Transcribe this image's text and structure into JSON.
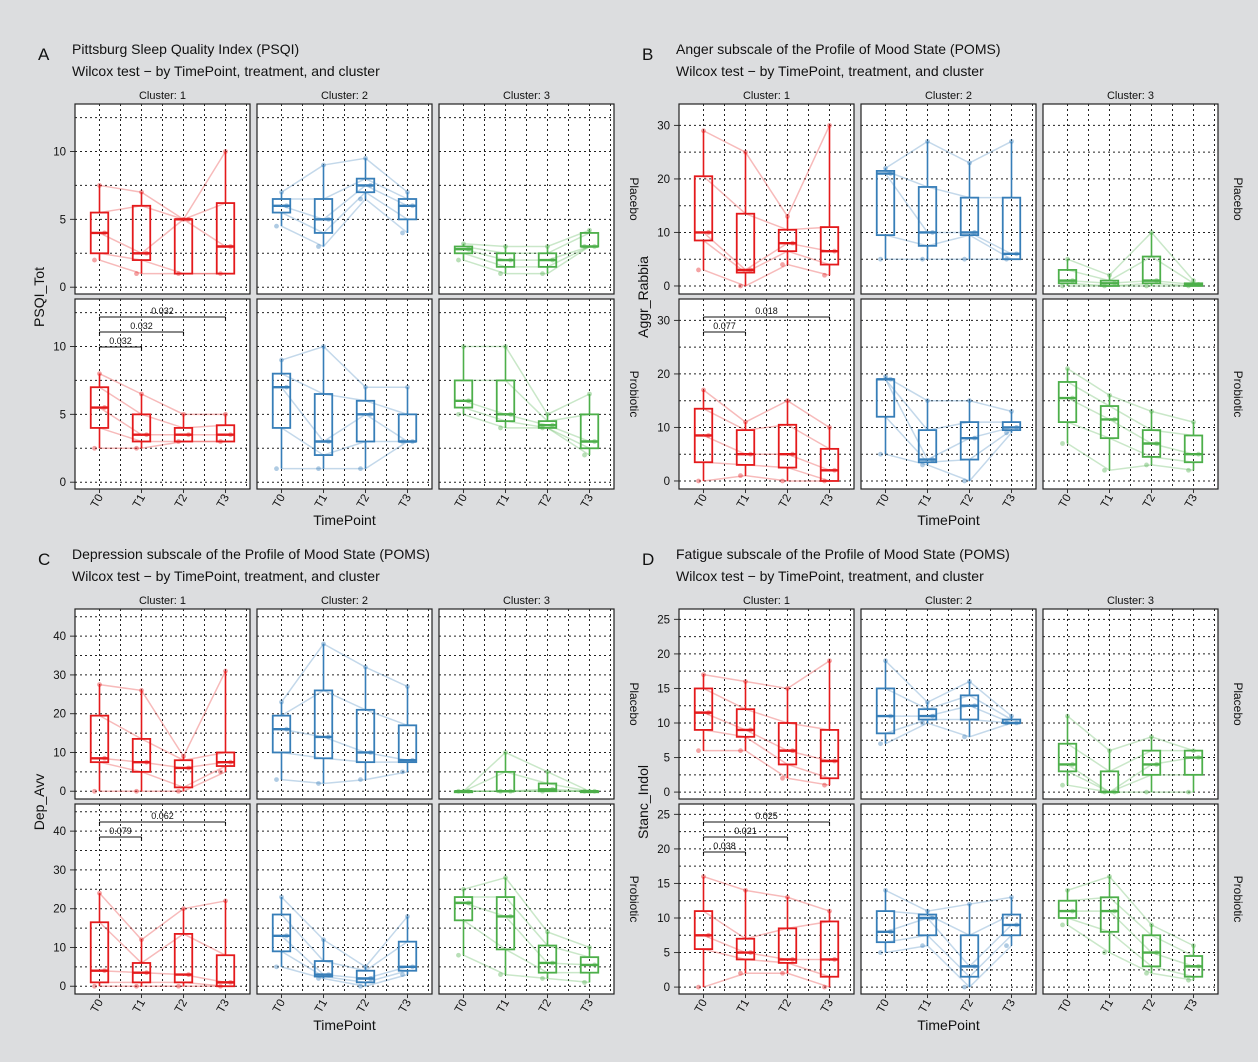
{
  "figure": {
    "background": "#dcdddf",
    "panel_background": "#ffffff",
    "colors": {
      "cluster_1": "#e41a1c",
      "cluster_2": "#377eb8",
      "cluster_3": "#4daf4a"
    },
    "strips": {
      "clusters": [
        "Cluster: 1",
        "Cluster: 2",
        "Cluster: 3"
      ],
      "rows": [
        "Placebo",
        "Probiotic"
      ]
    },
    "xlabel": "TimePoint",
    "timepoints": [
      "T0",
      "T1",
      "T2",
      "T3"
    ]
  },
  "chart_data": [
    {
      "type": "box",
      "letter": "A",
      "title": "Pittsburg Sleep Quality Index (PSQI)",
      "subtitle": "Wilcox test − by TimePoint, treatment, and cluster",
      "ylabel": "PSQI_Tot",
      "xlabel": "TimePoint",
      "ylim": [
        -0.5,
        13.5
      ],
      "yticks": [
        0,
        5,
        10
      ],
      "facets": {
        "Placebo": {
          "Cluster: 1": [
            [
              2,
              2.5,
              4,
              5.5,
              7.5
            ],
            [
              1,
              2,
              2.5,
              6,
              7
            ],
            [
              1,
              1,
              5,
              5,
              5
            ],
            [
              1,
              1,
              3,
              6.2,
              10
            ]
          ],
          "Cluster: 2": [
            [
              4.5,
              5.5,
              6,
              6.5,
              7
            ],
            [
              3,
              4,
              5,
              6.5,
              9
            ],
            [
              6.5,
              7,
              7.5,
              8,
              9.5
            ],
            [
              4,
              5,
              6,
              6.5,
              7
            ]
          ],
          "Cluster: 3": [
            [
              2,
              2.5,
              2.8,
              3,
              3.2
            ],
            [
              1,
              1.5,
              2,
              2.5,
              3
            ],
            [
              1,
              1.5,
              2,
              2.5,
              3
            ],
            [
              3,
              3,
              3,
              4,
              4.2
            ]
          ]
        },
        "Probiotic": {
          "Cluster: 1": [
            [
              2.5,
              4,
              5.5,
              7,
              8
            ],
            [
              2.5,
              3,
              3.5,
              5,
              6.5
            ],
            [
              3,
              3,
              3.5,
              4,
              5
            ],
            [
              3,
              3,
              3.5,
              4.2,
              5
            ]
          ],
          "Cluster: 2": [
            [
              1,
              4,
              7,
              8,
              9
            ],
            [
              1,
              2,
              3,
              6.5,
              10
            ],
            [
              1,
              3,
              5,
              6,
              7
            ],
            [
              3,
              3,
              3,
              5,
              7
            ]
          ],
          "Cluster: 3": [
            [
              5,
              5.5,
              6,
              7.5,
              10
            ],
            [
              4,
              4.5,
              5,
              7.5,
              10
            ],
            [
              4,
              4,
              4.2,
              4.5,
              5
            ],
            [
              2,
              2.5,
              3,
              5,
              6.5
            ]
          ]
        }
      },
      "annotations": [
        {
          "row": "Probiotic",
          "cluster": "Cluster: 1",
          "from": "T0",
          "to": "T1",
          "label": "0.032"
        },
        {
          "row": "Probiotic",
          "cluster": "Cluster: 1",
          "from": "T0",
          "to": "T2",
          "label": "0.032"
        },
        {
          "row": "Probiotic",
          "cluster": "Cluster: 1",
          "from": "T0",
          "to": "T3",
          "label": "0.032"
        }
      ]
    },
    {
      "type": "box",
      "letter": "B",
      "title": "Anger subscale of the Profile of Mood State (POMS)",
      "subtitle": "Wilcox test − by TimePoint, treatment, and cluster",
      "ylabel": "Aggr_Rabbia",
      "xlabel": "TimePoint",
      "ylim": [
        -1.5,
        34
      ],
      "yticks": [
        0,
        10,
        20,
        30
      ],
      "facets": {
        "Placebo": {
          "Cluster: 1": [
            [
              3,
              8.5,
              10,
              20.5,
              29
            ],
            [
              0,
              2.5,
              3,
              13.5,
              25
            ],
            [
              4,
              6.5,
              8,
              10.5,
              13
            ],
            [
              2,
              4,
              6.5,
              11,
              30
            ]
          ],
          "Cluster: 2": [
            [
              5,
              9.5,
              21,
              21.5,
              22
            ],
            [
              5,
              7.5,
              10,
              18.5,
              27
            ],
            [
              5,
              9.5,
              10,
              16.5,
              23
            ],
            [
              5,
              5,
              6,
              16.5,
              27
            ]
          ],
          "Cluster: 3": [
            [
              0,
              0.5,
              1,
              3,
              5
            ],
            [
              0,
              0,
              0.5,
              1,
              2
            ],
            [
              0,
              0.5,
              1,
              5.5,
              10
            ],
            [
              0,
              0,
              0.3,
              0.5,
              1
            ]
          ]
        },
        "Probiotic": {
          "Cluster: 1": [
            [
              0,
              3.5,
              8.5,
              13.5,
              17
            ],
            [
              1,
              3,
              5,
              9.5,
              11
            ],
            [
              0,
              2.5,
              5,
              10.5,
              15
            ],
            [
              0,
              0,
              2,
              6,
              10
            ]
          ],
          "Cluster: 2": [
            [
              5,
              12,
              19,
              19,
              19.5
            ],
            [
              3,
              3.5,
              4,
              9.5,
              15
            ],
            [
              0,
              4,
              8,
              11,
              15
            ],
            [
              9,
              9.5,
              10,
              11,
              13
            ]
          ],
          "Cluster: 3": [
            [
              7,
              11,
              15.5,
              18.5,
              21
            ],
            [
              2,
              8,
              11.5,
              14,
              16
            ],
            [
              3,
              4.5,
              7,
              9.5,
              13
            ],
            [
              2,
              3.5,
              5,
              8.5,
              11
            ]
          ]
        }
      },
      "annotations": [
        {
          "row": "Probiotic",
          "cluster": "Cluster: 1",
          "from": "T0",
          "to": "T1",
          "label": "0.077"
        },
        {
          "row": "Probiotic",
          "cluster": "Cluster: 1",
          "from": "T0",
          "to": "T3",
          "label": "0.018"
        }
      ]
    },
    {
      "type": "box",
      "letter": "C",
      "title": "Depression subscale of the Profile of Mood State (POMS)",
      "subtitle": "Wilcox test − by TimePoint, treatment, and cluster",
      "ylabel": "Dep_Avv",
      "xlabel": "TimePoint",
      "ylim": [
        -2,
        47
      ],
      "yticks": [
        0,
        10,
        20,
        30,
        40
      ],
      "facets": {
        "Placebo": {
          "Cluster: 1": [
            [
              0,
              7.5,
              8.5,
              19.5,
              27.5
            ],
            [
              0,
              5,
              7.5,
              13.5,
              26
            ],
            [
              0,
              1,
              6,
              8,
              9
            ],
            [
              5,
              6.5,
              7.5,
              10,
              31
            ]
          ],
          "Cluster: 2": [
            [
              3,
              10,
              16,
              19.5,
              23
            ],
            [
              2,
              8.5,
              14,
              26,
              38
            ],
            [
              3,
              7.5,
              10,
              21,
              32
            ],
            [
              5,
              7.5,
              8,
              17,
              27
            ]
          ],
          "Cluster: 3": [
            [
              0,
              0,
              0,
              0,
              0
            ],
            [
              0,
              0,
              0,
              5,
              10
            ],
            [
              0,
              0,
              0.5,
              2,
              5
            ],
            [
              0,
              0,
              0,
              0,
              0
            ]
          ]
        },
        "Probiotic": {
          "Cluster: 1": [
            [
              0,
              1,
              4,
              16.5,
              24
            ],
            [
              0,
              1,
              3.5,
              6,
              12
            ],
            [
              0,
              1,
              3,
              13.5,
              20
            ],
            [
              0,
              0,
              1,
              8,
              22
            ]
          ],
          "Cluster: 2": [
            [
              5,
              9,
              13,
              18.5,
              23
            ],
            [
              2,
              2.5,
              3,
              6.5,
              12
            ],
            [
              0,
              1,
              2,
              4,
              5
            ],
            [
              3,
              4,
              5,
              11.5,
              18
            ]
          ],
          "Cluster: 3": [
            [
              8,
              17,
              21.5,
              23,
              25
            ],
            [
              3,
              9.5,
              18,
              23,
              28
            ],
            [
              2,
              3.5,
              6,
              10.5,
              14
            ],
            [
              1,
              3.5,
              5.5,
              7.5,
              10
            ]
          ]
        }
      },
      "annotations": [
        {
          "row": "Probiotic",
          "cluster": "Cluster: 1",
          "from": "T0",
          "to": "T1",
          "label": "0.079"
        },
        {
          "row": "Probiotic",
          "cluster": "Cluster: 1",
          "from": "T0",
          "to": "T3",
          "label": "0.062"
        }
      ]
    },
    {
      "type": "box",
      "letter": "D",
      "title": "Fatigue subscale of the Profile of Mood State (POMS)",
      "subtitle": "Wilcox test − by TimePoint, treatment, and cluster",
      "ylabel": "Stanc_Indol",
      "xlabel": "TimePoint",
      "ylim": [
        -1,
        26.5
      ],
      "yticks": [
        0,
        5,
        10,
        15,
        20,
        25
      ],
      "facets": {
        "Placebo": {
          "Cluster: 1": [
            [
              6,
              9,
              11.5,
              15,
              17
            ],
            [
              6,
              8,
              9,
              12,
              16
            ],
            [
              2,
              4,
              6,
              10,
              15
            ],
            [
              1,
              2,
              4.5,
              9,
              19
            ]
          ],
          "Cluster: 2": [
            [
              7,
              8.5,
              11,
              15,
              19
            ],
            [
              10,
              10.5,
              11,
              12,
              13
            ],
            [
              8,
              10.5,
              12.5,
              14,
              16
            ],
            [
              10,
              10,
              10,
              10.5,
              11
            ]
          ],
          "Cluster: 3": [
            [
              1,
              3,
              4,
              7,
              11
            ],
            [
              0,
              0,
              0,
              3,
              6
            ],
            [
              0,
              2.5,
              4,
              6,
              8
            ],
            [
              0,
              2.5,
              5,
              6,
              6
            ]
          ]
        },
        "Probiotic": {
          "Cluster: 1": [
            [
              0,
              5.5,
              7.5,
              11,
              16
            ],
            [
              2,
              4,
              5,
              7,
              14
            ],
            [
              2,
              3.5,
              4,
              8.5,
              13
            ],
            [
              0,
              1.5,
              4,
              9.5,
              11
            ]
          ],
          "Cluster: 2": [
            [
              5,
              6.5,
              8,
              11,
              14
            ],
            [
              6,
              7.5,
              10,
              10.5,
              11
            ],
            [
              0,
              1.5,
              3,
              7.5,
              12
            ],
            [
              6,
              7.5,
              9,
              10.5,
              13
            ]
          ],
          "Cluster: 3": [
            [
              9,
              10,
              11,
              12.5,
              14
            ],
            [
              5,
              8,
              11,
              13,
              16
            ],
            [
              2,
              3,
              5,
              7.5,
              9
            ],
            [
              1,
              1.5,
              3,
              4.5,
              6
            ]
          ]
        }
      },
      "annotations": [
        {
          "row": "Probiotic",
          "cluster": "Cluster: 1",
          "from": "T0",
          "to": "T1",
          "label": "0.038"
        },
        {
          "row": "Probiotic",
          "cluster": "Cluster: 1",
          "from": "T0",
          "to": "T2",
          "label": "0.021"
        },
        {
          "row": "Probiotic",
          "cluster": "Cluster: 1",
          "from": "T0",
          "to": "T3",
          "label": "0.025"
        }
      ]
    }
  ]
}
